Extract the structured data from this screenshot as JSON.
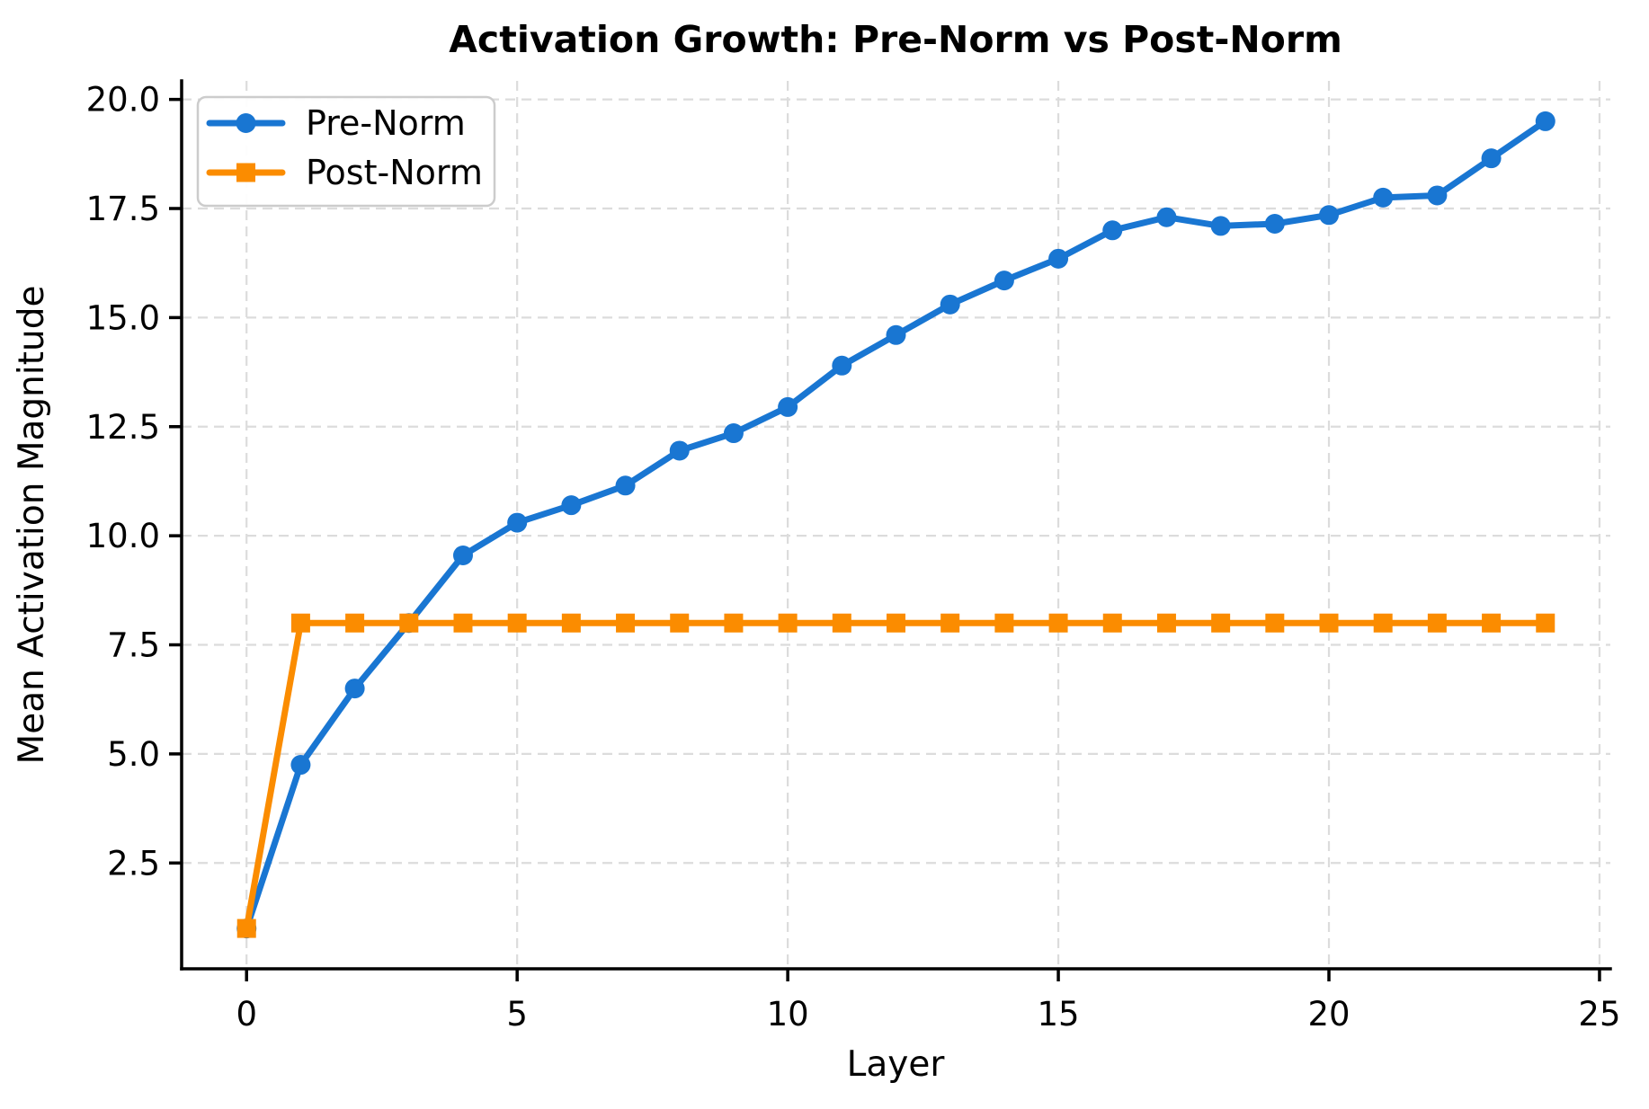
{
  "chart_data": {
    "type": "line",
    "title": "Activation Growth: Pre-Norm vs Post-Norm",
    "xlabel": "Layer",
    "ylabel": "Mean Activation Magnitude",
    "x": [
      0,
      1,
      2,
      3,
      4,
      5,
      6,
      7,
      8,
      9,
      10,
      11,
      12,
      13,
      14,
      15,
      16,
      17,
      18,
      19,
      20,
      21,
      22,
      23,
      24
    ],
    "series": [
      {
        "name": "Pre-Norm",
        "color": "#1976d2",
        "marker": "circle",
        "values": [
          1.0,
          4.75,
          6.5,
          8.0,
          9.55,
          10.3,
          10.7,
          11.15,
          11.95,
          12.35,
          12.95,
          13.9,
          14.6,
          15.3,
          15.85,
          16.35,
          17.0,
          17.3,
          17.1,
          17.15,
          17.35,
          17.75,
          17.8,
          18.65,
          19.5
        ]
      },
      {
        "name": "Post-Norm",
        "color": "#fb8c00",
        "marker": "square",
        "values": [
          1.0,
          8.0,
          8.0,
          8.0,
          8.0,
          8.0,
          8.0,
          8.0,
          8.0,
          8.0,
          8.0,
          8.0,
          8.0,
          8.0,
          8.0,
          8.0,
          8.0,
          8.0,
          8.0,
          8.0,
          8.0,
          8.0,
          8.0,
          8.0,
          8.0
        ]
      }
    ],
    "xlim": [
      -1.2,
      25.2
    ],
    "ylim": [
      0.075,
      20.425
    ],
    "x_ticks": {
      "values": [
        0,
        5,
        10,
        15,
        20,
        25
      ],
      "labels": [
        "0",
        "5",
        "10",
        "15",
        "20",
        "25"
      ]
    },
    "y_ticks": {
      "values": [
        2.5,
        5.0,
        7.5,
        10.0,
        12.5,
        15.0,
        17.5,
        20.0
      ],
      "labels": [
        "2.5",
        "5.0",
        "7.5",
        "10.0",
        "12.5",
        "15.0",
        "17.5",
        "20.0"
      ]
    },
    "grid": {
      "visible": true,
      "style": "dashed",
      "color": "#dcdcdc"
    },
    "legend": {
      "position": "upper left",
      "entries": [
        "Pre-Norm",
        "Post-Norm"
      ]
    },
    "spine_color": "#000000",
    "background": "#ffffff"
  }
}
